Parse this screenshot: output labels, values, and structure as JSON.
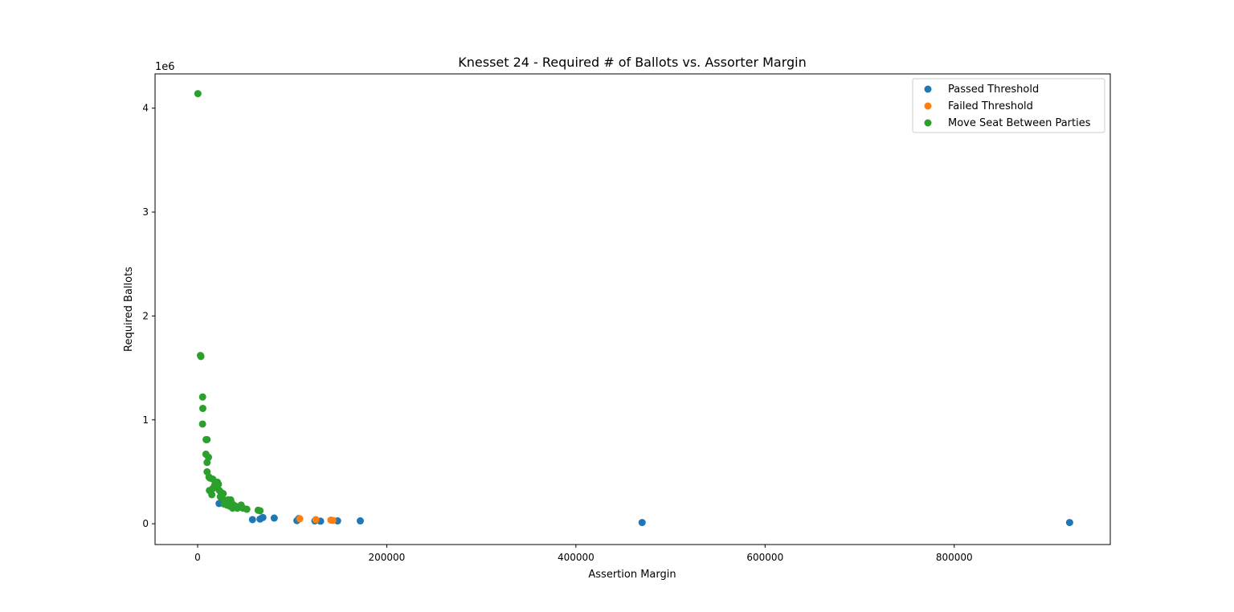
{
  "chart_data": {
    "type": "scatter",
    "title": "Knesset 24 - Required # of Ballots vs. Assorter Margin",
    "xlabel": "Assertion Margin",
    "ylabel": "Required Ballots",
    "y_offset_label": "1e6",
    "xlim": [
      -45000,
      965000
    ],
    "ylim": [
      -200000,
      4330000
    ],
    "x_ticks": [
      0,
      200000,
      400000,
      600000,
      800000
    ],
    "x_tick_labels": [
      "0",
      "200000",
      "400000",
      "600000",
      "800000"
    ],
    "y_ticks": [
      0,
      1000000,
      2000000,
      3000000,
      4000000
    ],
    "y_tick_labels": [
      "0",
      "1",
      "2",
      "3",
      "4"
    ],
    "grid": false,
    "legend_position": "top-right",
    "series": [
      {
        "name": "Passed Threshold",
        "color": "#1f77b4",
        "x": [
          22700,
          58000,
          66000,
          69000,
          81000,
          105000,
          107000,
          124000,
          130000,
          148000,
          172000,
          470000,
          922000
        ],
        "y": [
          195000,
          40000,
          45000,
          60000,
          55000,
          30000,
          50000,
          28000,
          25000,
          28000,
          28000,
          12000,
          12000
        ]
      },
      {
        "name": "Failed Threshold",
        "color": "#ff7f0e",
        "x": [
          108000,
          125000,
          141000,
          143000
        ],
        "y": [
          48000,
          40000,
          35000,
          32000
        ]
      },
      {
        "name": "Move Seat Between Parties",
        "color": "#2ca02c",
        "x": [
          300,
          3000,
          3500,
          5300,
          5500,
          5200,
          9000,
          10000,
          8800,
          10000,
          11500,
          10000,
          12000,
          13000,
          16000,
          12500,
          16000,
          15000,
          18000,
          19500,
          21000,
          22000,
          23000,
          24000,
          25000,
          26000,
          27000,
          28000,
          29000,
          30000,
          31000,
          32000,
          33000,
          34000,
          35000,
          36000,
          37000,
          38000,
          39000,
          40000,
          42000,
          44000,
          46000,
          48000,
          52000,
          64000,
          66000
        ],
        "y": [
          4140000,
          1620000,
          1610000,
          1220000,
          1110000,
          960000,
          810000,
          810000,
          670000,
          590000,
          640000,
          500000,
          450000,
          440000,
          430000,
          320000,
          340000,
          280000,
          370000,
          350000,
          400000,
          380000,
          320000,
          260000,
          300000,
          250000,
          290000,
          190000,
          220000,
          200000,
          180000,
          230000,
          210000,
          170000,
          230000,
          200000,
          150000,
          180000,
          160000,
          170000,
          150000,
          160000,
          180000,
          150000,
          140000,
          130000,
          125000
        ]
      }
    ]
  }
}
